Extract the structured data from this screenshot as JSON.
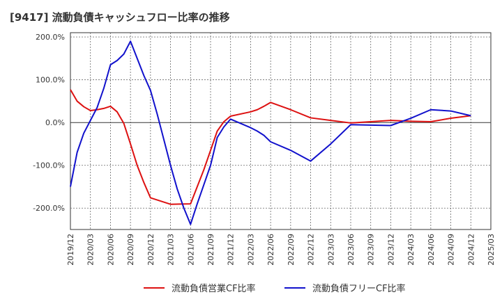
{
  "chart_data": {
    "type": "line",
    "title": "[9417]  流動負債キャッシュフロー比率の推移",
    "xlabel": "",
    "ylabel": "",
    "x_ticks": [
      "2019/12",
      "2020/03",
      "2020/06",
      "2020/09",
      "2020/12",
      "2021/03",
      "2021/06",
      "2021/09",
      "2021/12",
      "2022/03",
      "2022/06",
      "2022/09",
      "2022/12",
      "2023/03",
      "2023/06",
      "2023/09",
      "2023/12",
      "2024/03",
      "2024/06",
      "2024/09",
      "2024/12",
      "2025/03"
    ],
    "y_ticks": [
      200,
      100,
      0,
      -100,
      -200
    ],
    "y_tick_labels": [
      "200.0%",
      "100.0%",
      "0.0%",
      "-100.0%",
      "-200.0%"
    ],
    "ylim": [
      -250,
      210
    ],
    "grid": true,
    "legend_position": "bottom",
    "series": [
      {
        "name": "流動負債営業CF比率",
        "color": "#dd1111",
        "points": [
          [
            "2019/12",
            77
          ],
          [
            "2020/01",
            50
          ],
          [
            "2020/02",
            37
          ],
          [
            "2020/03",
            28
          ],
          [
            "2020/04",
            30
          ],
          [
            "2020/05",
            33
          ],
          [
            "2020/06",
            38
          ],
          [
            "2020/07",
            25
          ],
          [
            "2020/08",
            -2
          ],
          [
            "2020/09",
            -50
          ],
          [
            "2020/10",
            -100
          ],
          [
            "2020/11",
            -140
          ],
          [
            "2020/12",
            -176
          ],
          [
            "2021/03",
            -191
          ],
          [
            "2021/06",
            -190
          ],
          [
            "2021/07",
            -150
          ],
          [
            "2021/08",
            -110
          ],
          [
            "2021/09",
            -65
          ],
          [
            "2021/10",
            -20
          ],
          [
            "2021/11",
            2
          ],
          [
            "2021/12",
            15
          ],
          [
            "2022/03",
            25
          ],
          [
            "2022/04",
            30
          ],
          [
            "2022/05",
            38
          ],
          [
            "2022/06",
            47
          ],
          [
            "2022/09",
            30
          ],
          [
            "2022/12",
            11
          ],
          [
            "2023/03",
            5
          ],
          [
            "2023/06",
            -1
          ],
          [
            "2023/09",
            2
          ],
          [
            "2023/12",
            5
          ],
          [
            "2024/03",
            3
          ],
          [
            "2024/06",
            2
          ],
          [
            "2024/09",
            10
          ],
          [
            "2024/12",
            16
          ]
        ]
      },
      {
        "name": "流動負債フリーCF比率",
        "color": "#1111cc",
        "points": [
          [
            "2019/12",
            -150
          ],
          [
            "2020/01",
            -70
          ],
          [
            "2020/02",
            -25
          ],
          [
            "2020/03",
            5
          ],
          [
            "2020/04",
            35
          ],
          [
            "2020/05",
            80
          ],
          [
            "2020/06",
            135
          ],
          [
            "2020/07",
            145
          ],
          [
            "2020/08",
            160
          ],
          [
            "2020/09",
            190
          ],
          [
            "2020/10",
            150
          ],
          [
            "2020/11",
            110
          ],
          [
            "2020/12",
            75
          ],
          [
            "2021/01",
            20
          ],
          [
            "2021/02",
            -40
          ],
          [
            "2021/03",
            -100
          ],
          [
            "2021/04",
            -155
          ],
          [
            "2021/05",
            -200
          ],
          [
            "2021/06",
            -238
          ],
          [
            "2021/07",
            -190
          ],
          [
            "2021/08",
            -145
          ],
          [
            "2021/09",
            -100
          ],
          [
            "2021/10",
            -35
          ],
          [
            "2021/11",
            -10
          ],
          [
            "2021/12",
            8
          ],
          [
            "2022/03",
            -12
          ],
          [
            "2022/04",
            -20
          ],
          [
            "2022/05",
            -30
          ],
          [
            "2022/06",
            -45
          ],
          [
            "2022/09",
            -65
          ],
          [
            "2022/12",
            -90
          ],
          [
            "2023/03",
            -50
          ],
          [
            "2023/06",
            -5
          ],
          [
            "2023/09",
            -6
          ],
          [
            "2023/12",
            -7
          ],
          [
            "2024/03",
            10
          ],
          [
            "2024/06",
            30
          ],
          [
            "2024/09",
            27
          ],
          [
            "2024/12",
            16
          ]
        ]
      }
    ]
  }
}
